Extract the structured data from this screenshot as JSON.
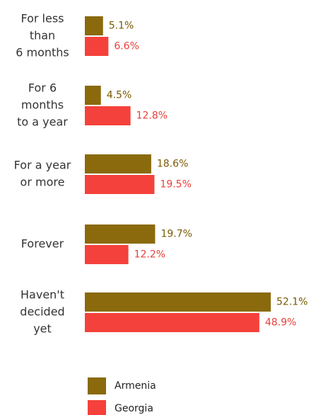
{
  "chart_data": {
    "type": "bar",
    "orientation": "horizontal",
    "categories": [
      [
        "For less",
        "than",
        "6 months"
      ],
      [
        "For 6",
        "months",
        "to a year"
      ],
      [
        "For a year",
        "or more"
      ],
      [
        "Forever"
      ],
      [
        "Haven't",
        "decided",
        "yet"
      ]
    ],
    "series": [
      {
        "name": "Armenia",
        "color": "#8a6a0c",
        "label_color": "#7a5a00",
        "values": [
          5.1,
          4.5,
          18.6,
          19.7,
          52.1
        ],
        "value_labels": [
          "5.1%",
          "4.5%",
          "18.6%",
          "19.7%",
          "52.1%"
        ]
      },
      {
        "name": "Georgia",
        "color": "#f5413b",
        "label_color": "#e8403a",
        "values": [
          6.6,
          12.8,
          19.5,
          12.2,
          48.9
        ],
        "value_labels": [
          "6.6%",
          "12.8%",
          "19.5%",
          "12.2%",
          "48.9%"
        ]
      }
    ],
    "legend": "bottom"
  }
}
